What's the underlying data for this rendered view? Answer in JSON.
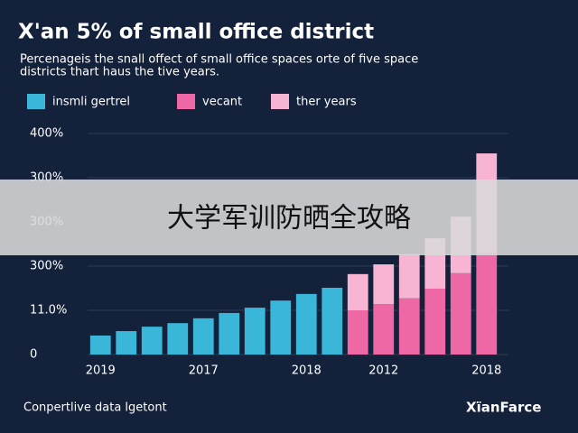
{
  "chart_data": {
    "type": "bar",
    "title": "X'an 5% of small office district",
    "subtitle": [
      "Percenageis the snall offect of small office spaces orte of five space",
      "districts thart haus the tive years."
    ],
    "categories": [
      "2019",
      null,
      null,
      null,
      "2017",
      null,
      null,
      null,
      "2018",
      null,
      null,
      "2012",
      null,
      null,
      null,
      "2018"
    ],
    "series": [
      {
        "name": "insmli gertrel",
        "color": "#3ab6d9",
        "values": [
          43,
          53,
          63,
          71,
          82,
          94,
          106,
          122,
          137,
          151,
          null,
          null,
          null,
          null,
          null,
          null
        ]
      },
      {
        "name": "vecant",
        "color": "#ef68a6",
        "values": [
          null,
          null,
          null,
          null,
          null,
          null,
          null,
          null,
          null,
          null,
          100,
          114,
          127,
          149,
          184,
          229
        ]
      },
      {
        "name": "ther years",
        "color": "#f7b4d3",
        "values": [
          null,
          null,
          null,
          null,
          null,
          null,
          null,
          null,
          null,
          null,
          82,
          90,
          100,
          114,
          128,
          226
        ]
      }
    ],
    "stacked": true,
    "ylim": [
      0,
      500
    ],
    "yticks": [
      0,
      {
        "value": 100,
        "label": "11.0%"
      },
      {
        "value": 200,
        "label": "300%"
      },
      {
        "value": 300,
        "label": "300%"
      },
      {
        "value": 400,
        "label": "300%"
      },
      {
        "value": 500,
        "label": "400%"
      }
    ],
    "grid": true,
    "banner": "大学军训防晒全攻略",
    "source": "Conpertlive data lgetont",
    "logo": "XïanFarce"
  }
}
